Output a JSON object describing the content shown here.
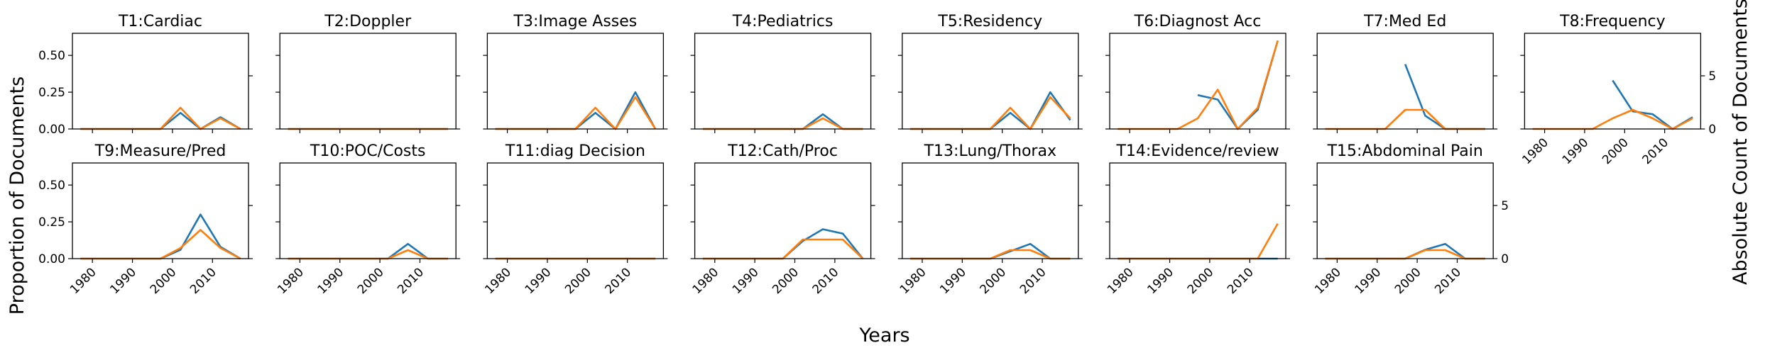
{
  "figure": {
    "xlabel": "Years",
    "ylabel_left": "Proportion of Documents",
    "ylabel_right": "Absolute Count of Documents"
  },
  "colors": {
    "proportion": "#1f77b4",
    "count": "#ff7f0e"
  },
  "x_ticks": [
    "1980",
    "1990",
    "2000",
    "2010"
  ],
  "left_ticks": [
    "0.00",
    "0.25",
    "0.50"
  ],
  "right_ticks": [
    "0",
    "5"
  ],
  "chart_data": [
    {
      "type": "line",
      "title": "T1:Cardiac",
      "x": [
        1977,
        1982,
        1987,
        1992,
        1997,
        2002,
        2007,
        2012,
        2017
      ],
      "ylim_left": [
        0,
        0.65
      ],
      "ylim_right": [
        0,
        9
      ],
      "series": [
        {
          "axis": "left",
          "values": [
            0,
            0,
            0,
            0,
            0,
            0.11,
            0,
            0.08,
            0
          ]
        },
        {
          "axis": "right",
          "values": [
            0,
            0,
            0,
            0,
            0,
            2,
            0,
            1,
            0
          ]
        }
      ]
    },
    {
      "type": "line",
      "title": "T2:Doppler",
      "x": [
        1977,
        1982,
        1987,
        1992,
        1997,
        2002,
        2007,
        2012,
        2017
      ],
      "ylim_left": [
        0,
        0.65
      ],
      "ylim_right": [
        0,
        9
      ],
      "series": [
        {
          "axis": "left",
          "values": [
            0,
            0,
            0,
            0,
            0,
            0,
            0,
            0,
            0
          ]
        },
        {
          "axis": "right",
          "values": [
            0,
            0,
            0,
            0,
            0,
            0,
            0,
            0,
            0
          ]
        }
      ]
    },
    {
      "type": "line",
      "title": "T3:Image Asses",
      "x": [
        1977,
        1982,
        1987,
        1992,
        1997,
        2002,
        2007,
        2012,
        2017
      ],
      "ylim_left": [
        0,
        0.65
      ],
      "ylim_right": [
        0,
        9
      ],
      "series": [
        {
          "axis": "left",
          "values": [
            0,
            0,
            0,
            0,
            0,
            0.11,
            0,
            0.25,
            0
          ]
        },
        {
          "axis": "right",
          "values": [
            0,
            0,
            0,
            0,
            0,
            2,
            0,
            3,
            0
          ]
        }
      ]
    },
    {
      "type": "line",
      "title": "T4:Pediatrics",
      "x": [
        1977,
        1982,
        1987,
        1992,
        1997,
        2002,
        2007,
        2012,
        2017
      ],
      "ylim_left": [
        0,
        0.65
      ],
      "ylim_right": [
        0,
        9
      ],
      "series": [
        {
          "axis": "left",
          "values": [
            0,
            0,
            0,
            0,
            0,
            0,
            0.1,
            0,
            0
          ]
        },
        {
          "axis": "right",
          "values": [
            0,
            0,
            0,
            0,
            0,
            0,
            1,
            0,
            0
          ]
        }
      ]
    },
    {
      "type": "line",
      "title": "T5:Residency",
      "x": [
        1977,
        1982,
        1987,
        1992,
        1997,
        2002,
        2007,
        2012,
        2017
      ],
      "ylim_left": [
        0,
        0.65
      ],
      "ylim_right": [
        0,
        9
      ],
      "series": [
        {
          "axis": "left",
          "values": [
            0,
            0,
            0,
            0,
            0,
            0.11,
            0,
            0.25,
            0.06
          ]
        },
        {
          "axis": "right",
          "values": [
            0,
            0,
            0,
            0,
            0,
            2,
            0,
            3,
            1
          ]
        }
      ]
    },
    {
      "type": "line",
      "title": "T6:Diagnost Acc",
      "x": [
        1977,
        1982,
        1987,
        1992,
        1997,
        2002,
        2007,
        2012,
        2017
      ],
      "ylim_left": [
        0,
        0.65
      ],
      "ylim_right": [
        0,
        9
      ],
      "series": [
        {
          "axis": "left",
          "values": [
            null,
            null,
            null,
            null,
            0.23,
            0.2,
            0,
            0.13,
            0.6
          ]
        },
        {
          "axis": "right",
          "values": [
            0,
            0,
            0,
            0,
            1,
            3.7,
            0,
            2,
            8.3
          ]
        }
      ]
    },
    {
      "type": "line",
      "title": "T7:Med Ed",
      "x": [
        1977,
        1982,
        1987,
        1992,
        1997,
        2002,
        2007,
        2012,
        2017
      ],
      "ylim_left": [
        0,
        0.65
      ],
      "ylim_right": [
        0,
        9
      ],
      "series": [
        {
          "axis": "left",
          "values": [
            null,
            null,
            null,
            null,
            0.44,
            0.09,
            0,
            0,
            0
          ]
        },
        {
          "axis": "right",
          "values": [
            0,
            0,
            0,
            0,
            1.8,
            1.8,
            0,
            0,
            0
          ]
        }
      ]
    },
    {
      "type": "line",
      "title": "T8:Frequency",
      "x": [
        1977,
        1982,
        1987,
        1992,
        1997,
        2002,
        2007,
        2012,
        2017
      ],
      "ylim_left": [
        0,
        0.65
      ],
      "ylim_right": [
        0,
        9
      ],
      "series": [
        {
          "axis": "left",
          "values": [
            null,
            null,
            null,
            null,
            0.33,
            0.12,
            0.1,
            0,
            0.08
          ]
        },
        {
          "axis": "right",
          "values": [
            0,
            0,
            0,
            0,
            1,
            1.8,
            1,
            0,
            1
          ]
        }
      ]
    },
    {
      "type": "line",
      "title": "T9:Measure/Pred",
      "x": [
        1977,
        1982,
        1987,
        1992,
        1997,
        2002,
        2007,
        2012,
        2017
      ],
      "ylim_left": [
        0,
        0.65
      ],
      "ylim_right": [
        0,
        9
      ],
      "series": [
        {
          "axis": "left",
          "values": [
            0,
            0,
            0,
            0,
            0,
            0.06,
            0.3,
            0.08,
            0
          ]
        },
        {
          "axis": "right",
          "values": [
            0,
            0,
            0,
            0,
            0,
            1,
            2.7,
            1,
            0
          ]
        }
      ]
    },
    {
      "type": "line",
      "title": "T10:POC/Costs",
      "x": [
        1977,
        1982,
        1987,
        1992,
        1997,
        2002,
        2007,
        2012,
        2017
      ],
      "ylim_left": [
        0,
        0.65
      ],
      "ylim_right": [
        0,
        9
      ],
      "series": [
        {
          "axis": "left",
          "values": [
            0,
            0,
            0,
            0,
            0,
            0,
            0.1,
            0,
            0
          ]
        },
        {
          "axis": "right",
          "values": [
            0,
            0,
            0,
            0,
            0,
            0,
            0.8,
            0,
            0
          ]
        }
      ]
    },
    {
      "type": "line",
      "title": "T11:diag Decision",
      "x": [
        1977,
        1982,
        1987,
        1992,
        1997,
        2002,
        2007,
        2012,
        2017
      ],
      "ylim_left": [
        0,
        0.65
      ],
      "ylim_right": [
        0,
        9
      ],
      "series": [
        {
          "axis": "left",
          "values": [
            0,
            0,
            0,
            0,
            0,
            0,
            0,
            0,
            0
          ]
        },
        {
          "axis": "right",
          "values": [
            0,
            0,
            0,
            0,
            0,
            0,
            0,
            0,
            0
          ]
        }
      ]
    },
    {
      "type": "line",
      "title": "T12:Cath/Proc",
      "x": [
        1977,
        1982,
        1987,
        1992,
        1997,
        2002,
        2007,
        2012,
        2017
      ],
      "ylim_left": [
        0,
        0.65
      ],
      "ylim_right": [
        0,
        9
      ],
      "series": [
        {
          "axis": "left",
          "values": [
            0,
            0,
            0,
            0,
            0,
            0.12,
            0.2,
            0.17,
            0
          ]
        },
        {
          "axis": "right",
          "values": [
            0,
            0,
            0,
            0,
            0,
            1.8,
            1.8,
            1.8,
            0
          ]
        }
      ]
    },
    {
      "type": "line",
      "title": "T13:Lung/Thorax",
      "x": [
        1977,
        1982,
        1987,
        1992,
        1997,
        2002,
        2007,
        2012,
        2017
      ],
      "ylim_left": [
        0,
        0.65
      ],
      "ylim_right": [
        0,
        9
      ],
      "series": [
        {
          "axis": "left",
          "values": [
            0,
            0,
            0,
            0,
            0,
            0.05,
            0.1,
            0,
            0
          ]
        },
        {
          "axis": "right",
          "values": [
            0,
            0,
            0,
            0,
            0,
            0.8,
            0.8,
            0,
            0
          ]
        }
      ]
    },
    {
      "type": "line",
      "title": "T14:Evidence/review",
      "x": [
        1977,
        1982,
        1987,
        1992,
        1997,
        2002,
        2007,
        2012,
        2017
      ],
      "ylim_left": [
        0,
        0.65
      ],
      "ylim_right": [
        0,
        9
      ],
      "series": [
        {
          "axis": "left",
          "values": [
            0,
            0,
            0,
            0,
            0,
            0,
            0,
            0,
            0
          ]
        },
        {
          "axis": "right",
          "values": [
            0,
            0,
            0,
            0,
            0,
            0,
            0,
            0,
            3.3
          ]
        }
      ]
    },
    {
      "type": "line",
      "title": "T15:Abdominal Pain",
      "x": [
        1977,
        1982,
        1987,
        1992,
        1997,
        2002,
        2007,
        2012,
        2017
      ],
      "ylim_left": [
        0,
        0.65
      ],
      "ylim_right": [
        0,
        9
      ],
      "series": [
        {
          "axis": "left",
          "values": [
            0,
            0,
            0,
            0,
            0,
            0.06,
            0.1,
            0,
            0
          ]
        },
        {
          "axis": "right",
          "values": [
            0,
            0,
            0,
            0,
            0,
            0.8,
            0.8,
            0,
            0
          ]
        }
      ]
    }
  ]
}
